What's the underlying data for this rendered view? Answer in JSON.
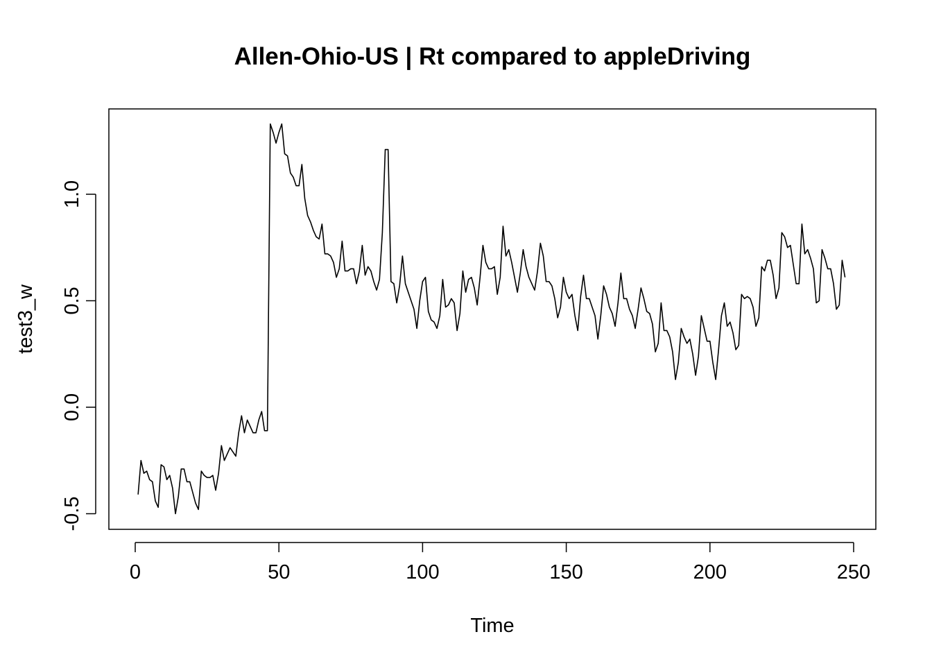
{
  "chart_data": {
    "type": "line",
    "title": "Allen-Ohio-US | Rt compared to appleDriving",
    "xlabel": "Time",
    "ylabel": "test3_w",
    "xlim": [
      0,
      250
    ],
    "ylim": [
      -0.5,
      1.3
    ],
    "x_ticks": [
      0,
      50,
      100,
      150,
      200,
      250
    ],
    "x_tick_labels": [
      "0",
      "50",
      "100",
      "150",
      "200",
      "250"
    ],
    "y_ticks": [
      -0.5,
      0.0,
      0.5,
      1.0
    ],
    "y_tick_labels": [
      "-0.5",
      "0.0",
      "0.5",
      "1.0"
    ],
    "grid": false,
    "legend": "none",
    "line_color": "#000000",
    "series": [
      {
        "x_start": 1,
        "x_step": 1,
        "values": [
          -0.41,
          -0.25,
          -0.31,
          -0.3,
          -0.34,
          -0.35,
          -0.44,
          -0.47,
          -0.27,
          -0.28,
          -0.34,
          -0.32,
          -0.38,
          -0.5,
          -0.42,
          -0.29,
          -0.29,
          -0.35,
          -0.35,
          -0.4,
          -0.45,
          -0.48,
          -0.3,
          -0.32,
          -0.33,
          -0.33,
          -0.32,
          -0.39,
          -0.31,
          -0.18,
          -0.25,
          -0.22,
          -0.19,
          -0.21,
          -0.23,
          -0.12,
          -0.04,
          -0.12,
          -0.06,
          -0.09,
          -0.12,
          -0.12,
          -0.06,
          -0.02,
          -0.11,
          -0.11,
          1.33,
          1.29,
          1.24,
          1.29,
          1.33,
          1.19,
          1.18,
          1.1,
          1.08,
          1.04,
          1.04,
          1.14,
          0.98,
          0.9,
          0.87,
          0.83,
          0.8,
          0.79,
          0.86,
          0.72,
          0.72,
          0.71,
          0.68,
          0.61,
          0.65,
          0.78,
          0.64,
          0.64,
          0.65,
          0.65,
          0.58,
          0.64,
          0.76,
          0.62,
          0.66,
          0.64,
          0.59,
          0.55,
          0.6,
          0.82,
          1.21,
          1.21,
          0.59,
          0.58,
          0.49,
          0.57,
          0.71,
          0.58,
          0.54,
          0.5,
          0.46,
          0.37,
          0.5,
          0.59,
          0.61,
          0.45,
          0.41,
          0.4,
          0.37,
          0.43,
          0.6,
          0.47,
          0.48,
          0.51,
          0.49,
          0.36,
          0.44,
          0.64,
          0.54,
          0.6,
          0.61,
          0.56,
          0.48,
          0.61,
          0.76,
          0.68,
          0.65,
          0.65,
          0.66,
          0.53,
          0.61,
          0.85,
          0.71,
          0.74,
          0.68,
          0.61,
          0.54,
          0.63,
          0.74,
          0.66,
          0.61,
          0.58,
          0.55,
          0.64,
          0.77,
          0.71,
          0.59,
          0.59,
          0.57,
          0.51,
          0.42,
          0.47,
          0.61,
          0.54,
          0.51,
          0.53,
          0.43,
          0.36,
          0.52,
          0.62,
          0.51,
          0.51,
          0.47,
          0.43,
          0.32,
          0.43,
          0.57,
          0.53,
          0.47,
          0.44,
          0.38,
          0.49,
          0.63,
          0.51,
          0.51,
          0.46,
          0.43,
          0.37,
          0.46,
          0.56,
          0.51,
          0.45,
          0.44,
          0.39,
          0.26,
          0.3,
          0.49,
          0.36,
          0.36,
          0.33,
          0.26,
          0.13,
          0.21,
          0.37,
          0.33,
          0.3,
          0.32,
          0.25,
          0.15,
          0.24,
          0.43,
          0.37,
          0.31,
          0.31,
          0.21,
          0.13,
          0.27,
          0.43,
          0.49,
          0.38,
          0.4,
          0.35,
          0.27,
          0.29,
          0.53,
          0.51,
          0.52,
          0.51,
          0.47,
          0.38,
          0.42,
          0.66,
          0.64,
          0.69,
          0.69,
          0.62,
          0.51,
          0.56,
          0.82,
          0.8,
          0.75,
          0.76,
          0.67,
          0.58,
          0.58,
          0.86,
          0.72,
          0.74,
          0.7,
          0.65,
          0.49,
          0.5,
          0.74,
          0.7,
          0.65,
          0.65,
          0.58,
          0.46,
          0.48,
          0.69,
          0.61
        ]
      }
    ]
  }
}
